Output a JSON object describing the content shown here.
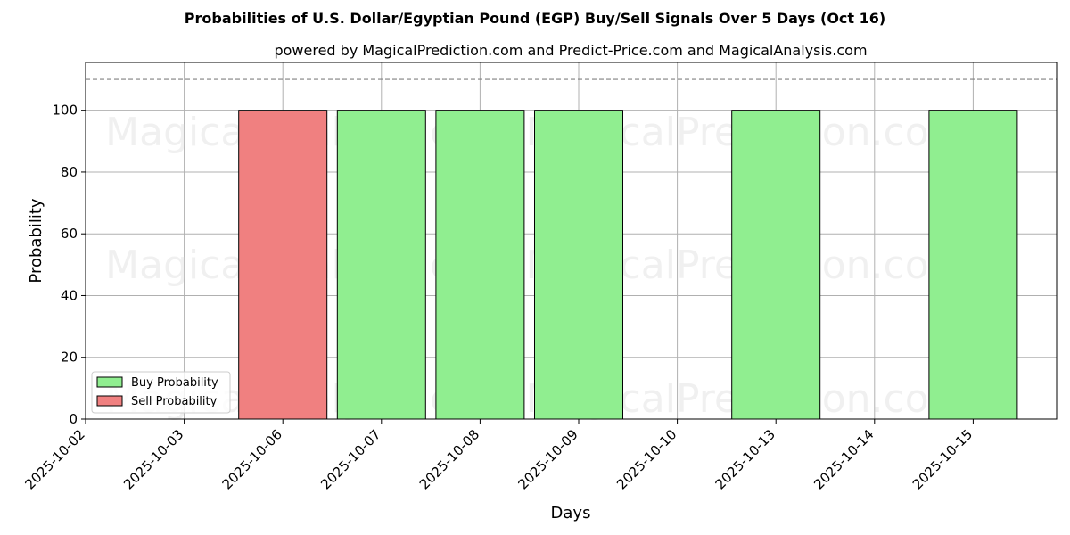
{
  "chart_data": {
    "type": "bar",
    "title": "Probabilities of U.S. Dollar/Egyptian Pound (EGP) Buy/Sell Signals Over 5 Days (Oct 16)",
    "subtitle": "powered by MagicalPrediction.com and Predict-Price.com and MagicalAnalysis.com",
    "xlabel": "Days",
    "ylabel": "Probability",
    "categories": [
      "2025-10-02",
      "2025-10-03",
      "2025-10-06",
      "2025-10-07",
      "2025-10-08",
      "2025-10-09",
      "2025-10-10",
      "2025-10-13",
      "2025-10-14",
      "2025-10-15"
    ],
    "yticks": [
      0,
      20,
      40,
      60,
      80,
      100
    ],
    "ylim": [
      0,
      115.5
    ],
    "reference_line": 110,
    "grid": true,
    "legend_position": "lower-left",
    "series": [
      {
        "name": "Buy Probability",
        "color": "#90ee90",
        "values": [
          0,
          0,
          0,
          100,
          100,
          100,
          0,
          100,
          0,
          100
        ]
      },
      {
        "name": "Sell Probability",
        "color": "#f08080",
        "values": [
          0,
          0,
          100,
          0,
          0,
          0,
          0,
          0,
          0,
          0
        ]
      }
    ]
  },
  "watermarks": [
    "MagicalAnalysis.com",
    "MagicalPrediction.com",
    "MagicalAnalysis.com",
    "MagicalPrediction.com",
    "MagicalAnalysis.com",
    "MagicalPrediction.com"
  ]
}
